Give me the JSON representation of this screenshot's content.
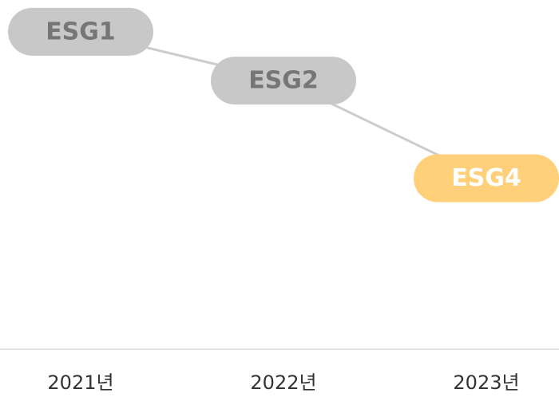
{
  "chart_data": {
    "type": "line",
    "categories": [
      "2021년",
      "2022년",
      "2023년"
    ],
    "values": [
      1,
      2,
      4
    ],
    "value_labels": [
      "ESG1",
      "ESG2",
      "ESG4"
    ],
    "colors": [
      "#c8c8c8",
      "#c8c8c8",
      "#ffcf7a"
    ],
    "label_colors": [
      "#767676",
      "#767676",
      "#ffffff"
    ],
    "line_color": "#cccccc",
    "ylim": [
      7.5,
      0.35
    ]
  }
}
